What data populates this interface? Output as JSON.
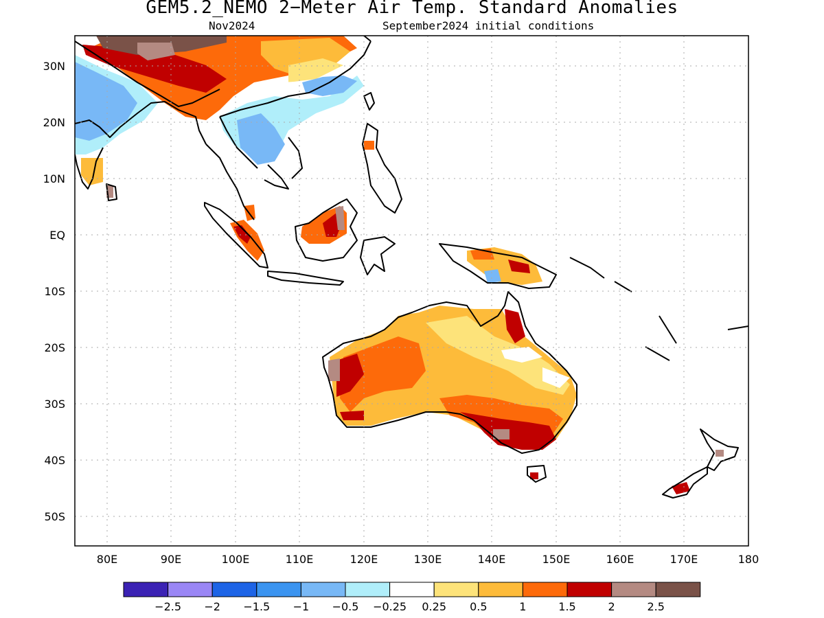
{
  "title": "GEM5.2_NEMO 2−Meter Air Temp. Standard Anomalies",
  "valid_month": "Nov2024",
  "initial_conditions": "September2024 initial conditions",
  "map": {
    "lon_range": [
      75,
      180
    ],
    "lat_range": [
      -55,
      35
    ],
    "lat_labels": [
      "30N",
      "20N",
      "10N",
      "EQ",
      "10S",
      "20S",
      "30S",
      "40S",
      "50S"
    ],
    "lon_labels": [
      "80E",
      "90E",
      "100E",
      "110E",
      "120E",
      "130E",
      "140E",
      "150E",
      "160E",
      "170E",
      "180"
    ]
  },
  "colorbar": {
    "colors": [
      "#3b22b4",
      "#9a86f5",
      "#1e64e6",
      "#3b94f0",
      "#78b8f6",
      "#b0eefa",
      "#ffffff",
      "#fde37a",
      "#fdbb3a",
      "#fd6a0a",
      "#c00000",
      "#b48a82",
      "#7a5248"
    ],
    "labels": [
      "−2.5",
      "−2",
      "−1.5",
      "−1",
      "−0.5",
      "−0.25",
      "0.25",
      "0.5",
      "1",
      "1.5",
      "2",
      "2.5"
    ]
  }
}
